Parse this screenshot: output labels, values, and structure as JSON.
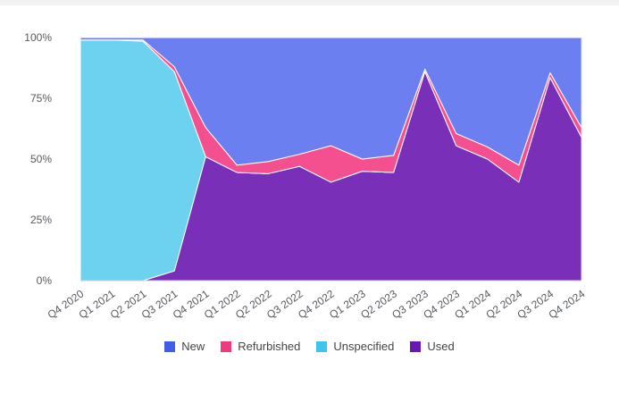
{
  "chart_data": {
    "type": "area",
    "stacked": true,
    "normalized": true,
    "categories": [
      "Q4 2020",
      "Q1 2021",
      "Q2 2021",
      "Q3 2021",
      "Q4 2021",
      "Q1 2022",
      "Q2 2022",
      "Q3 2022",
      "Q4 2022",
      "Q1 2023",
      "Q2 2023",
      "Q3 2023",
      "Q4 2023",
      "Q1 2024",
      "Q2 2024",
      "Q3 2024",
      "Q4 2024"
    ],
    "series": [
      {
        "name": "Used",
        "color": "#7a2fb8",
        "values": [
          0,
          0,
          0,
          4,
          51,
          44.5,
          44,
          47,
          40.5,
          45,
          44.5,
          86,
          55.5,
          50,
          40.5,
          83.5,
          59
        ]
      },
      {
        "name": "Unspecified",
        "color": "#6dd1f0",
        "values": [
          99,
          99,
          98.5,
          82,
          0,
          0,
          0,
          0,
          0,
          0,
          0,
          0,
          0,
          0,
          0,
          0,
          0
        ]
      },
      {
        "name": "Refurbished",
        "color": "#f4508f",
        "values": [
          0,
          0,
          0.5,
          2,
          12,
          3,
          5,
          5,
          15,
          5,
          7,
          1,
          5,
          5,
          7,
          2,
          4
        ]
      },
      {
        "name": "New",
        "color": "#6b7ff0",
        "values": [
          1,
          1,
          1,
          12,
          37,
          52.5,
          51,
          48,
          44.5,
          50,
          48.5,
          13,
          39.5,
          45,
          52.5,
          14.5,
          37
        ]
      }
    ],
    "yticks": [
      "0%",
      "25%",
      "50%",
      "75%",
      "100%"
    ],
    "ylim": [
      0,
      100
    ],
    "grid": true,
    "legend_position": "bottom",
    "legend": [
      {
        "name": "New",
        "color": "#3f5de8"
      },
      {
        "name": "Refurbished",
        "color": "#f03a80"
      },
      {
        "name": "Unspecified",
        "color": "#3cc4ea"
      },
      {
        "name": "Used",
        "color": "#6a16b0"
      }
    ]
  }
}
